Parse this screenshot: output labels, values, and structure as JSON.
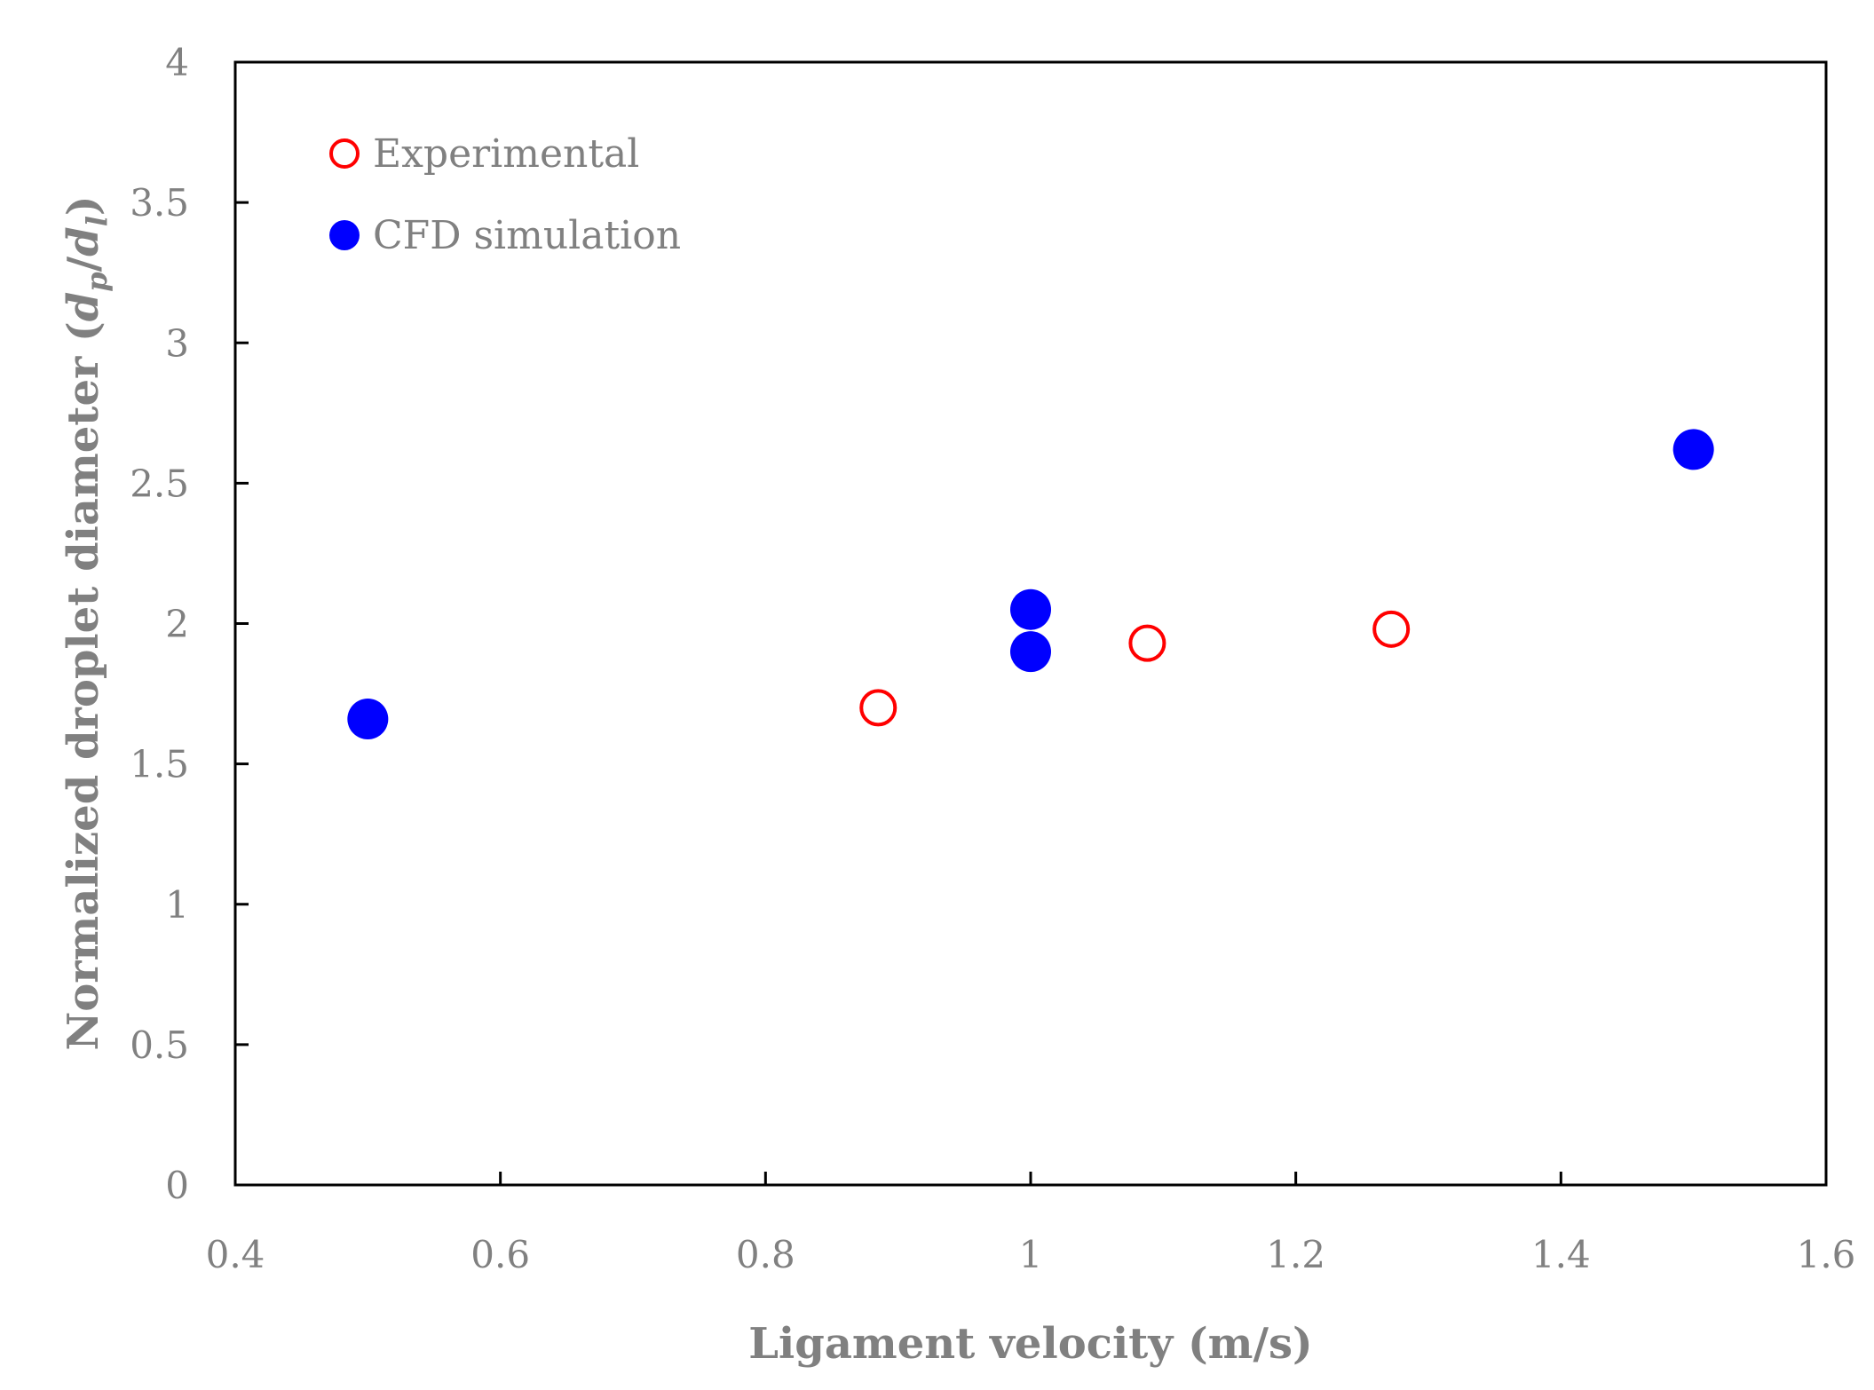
{
  "chart_data": {
    "type": "scatter",
    "title": "",
    "xlabel": "Ligament velocity (m/s)",
    "ylabel": {
      "prefix": "Normalized droplet diameter (",
      "num": "d",
      "num_sub": "p",
      "slash": "/",
      "den": "d",
      "den_sub": "l",
      "suffix": ")"
    },
    "xlim": [
      0.4,
      1.6
    ],
    "ylim": [
      0,
      4
    ],
    "xticks": [
      0.4,
      0.6,
      0.8,
      1,
      1.2,
      1.4,
      1.6
    ],
    "xtick_labels": [
      "0.4",
      "0.6",
      "0.8",
      "1",
      "1.2",
      "1.4",
      "1.6"
    ],
    "yticks": [
      0,
      0.5,
      1,
      1.5,
      2,
      2.5,
      3,
      3.5,
      4
    ],
    "ytick_labels": [
      "0",
      "0.5",
      "1",
      "1.5",
      "2",
      "2.5",
      "3",
      "3.5",
      "4"
    ],
    "grid": false,
    "legend_position": "top-left",
    "series": [
      {
        "name": "Experimental",
        "marker": "open-circle",
        "color": "#ff0000",
        "x": [
          0.885,
          1.088,
          1.272
        ],
        "y": [
          1.7,
          1.93,
          1.98
        ]
      },
      {
        "name": "CFD simulation",
        "marker": "filled-circle",
        "color": "#0000ff",
        "x": [
          0.5,
          1.0,
          1.0,
          1.5
        ],
        "y": [
          1.66,
          2.05,
          1.9,
          2.62
        ]
      }
    ]
  }
}
